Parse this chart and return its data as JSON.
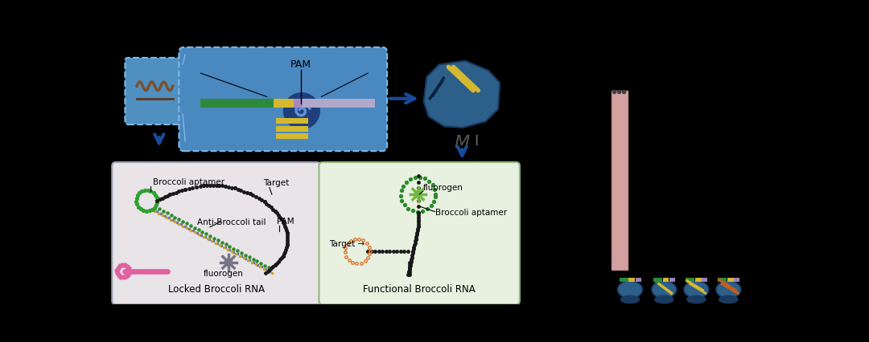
{
  "bg_color": "#000000",
  "blue_med": "#4a8fc1",
  "blue_light": "#6aafd4",
  "blue_box": "#4a88c0",
  "locked_bg": "#e8e4e8",
  "functional_bg": "#e8f0e0",
  "green_chain": "#30a030",
  "black_chain": "#202020",
  "pink_chain": "#e060a0",
  "gray_fluorogen": "#757585",
  "green_fluorogen": "#70b840",
  "salmon_bar": "#d4a0a0",
  "title_locked": "Locked Broccoli RNA",
  "title_functional": "Functional Broccoli RNA",
  "label_pam": "PAM",
  "label_broccoli_aptamer": "Broccoli aptamer",
  "label_anti_broccoli": "Anti-Broccoli tail",
  "label_target": "Target",
  "label_pam2": "PAM",
  "label_fluorogen": "fluorogen",
  "label_broccoli_aptamer2": "Broccoli aptamer",
  "label_target2": "Target"
}
